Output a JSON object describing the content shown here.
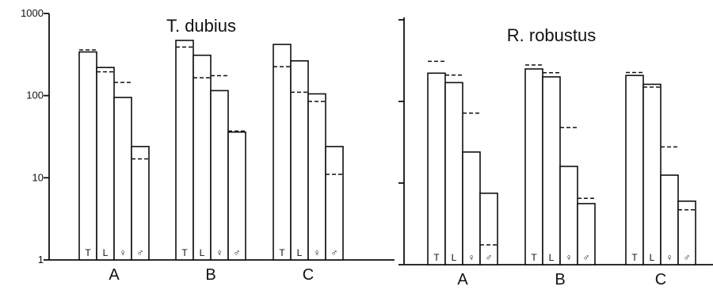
{
  "chart_data": [
    {
      "type": "bar",
      "title": "T. dubius",
      "yscale": "log",
      "ylim": [
        1,
        1000
      ],
      "yticks": [
        "1",
        "10",
        "100",
        "1000"
      ],
      "groups": [
        "A",
        "B",
        "C"
      ],
      "bar_labels": [
        "T",
        "L",
        "♀",
        "♂"
      ],
      "series": [
        {
          "values": [
            [
              340,
              220,
              95,
              24
            ],
            [
              470,
              310,
              115,
              36
            ],
            [
              420,
              265,
              105,
              24
            ]
          ]
        },
        {
          "values": [
            [
              360,
              195,
              145,
              17
            ],
            [
              390,
              165,
              175,
              37
            ],
            [
              225,
              110,
              85,
              11
            ]
          ]
        }
      ]
    },
    {
      "type": "bar",
      "title": "R. robustus",
      "yscale": "log",
      "ylim": [
        1,
        1000
      ],
      "yticks": [],
      "groups": [
        "A",
        "B",
        "C"
      ],
      "bar_labels": [
        "T",
        "L",
        "♀",
        "♂"
      ],
      "series": [
        {
          "values": [
            [
              222,
              170,
              24,
              7.5
            ],
            [
              250,
              200,
              16,
              5.6
            ],
            [
              208,
              162,
              12.5,
              6.0
            ]
          ]
        },
        {
          "values": [
            [
              310,
              210,
              72,
              1.75
            ],
            [
              280,
              225,
              48,
              6.5
            ],
            [
              226,
              150,
              27.7,
              4.7
            ]
          ]
        }
      ]
    }
  ]
}
